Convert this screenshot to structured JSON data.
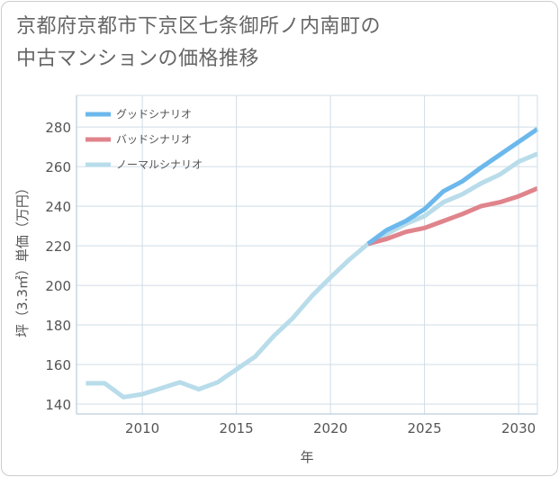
{
  "title_lines": [
    "京都府京都市下京区七条御所ノ内南町の",
    "中古マンションの価格推移"
  ],
  "chart_data": {
    "type": "line",
    "xlabel": "年",
    "ylabel": "坪（3.3㎡）単価（万円）",
    "xlim": [
      2006.5,
      2031
    ],
    "ylim": [
      135,
      296
    ],
    "xticks": [
      2010,
      2015,
      2020,
      2025,
      2030
    ],
    "yticks": [
      140,
      160,
      180,
      200,
      220,
      240,
      260,
      280
    ],
    "grid": true,
    "legend_position": "top-left",
    "series": [
      {
        "name": "グッドシナリオ",
        "color": "#6cb8ec",
        "x": [
          2022,
          2023,
          2024,
          2025,
          2026,
          2027,
          2028,
          2029,
          2030,
          2031
        ],
        "y": [
          221,
          228,
          232.5,
          238.5,
          247.5,
          252.5,
          259.5,
          266,
          272.5,
          279
        ]
      },
      {
        "name": "バッドシナリオ",
        "color": "#e0848c",
        "x": [
          2022,
          2023,
          2024,
          2025,
          2026,
          2027,
          2028,
          2029,
          2030,
          2031
        ],
        "y": [
          221,
          223.5,
          227,
          229,
          232.5,
          236,
          240,
          242,
          245,
          249
        ]
      },
      {
        "name": "ノーマルシナリオ",
        "color": "#b8dcea",
        "x": [
          2007,
          2008,
          2009,
          2010,
          2011,
          2012,
          2013,
          2014,
          2015,
          2016,
          2017,
          2018,
          2019,
          2020,
          2021,
          2022,
          2023,
          2024,
          2025,
          2026,
          2027,
          2028,
          2029,
          2030,
          2031
        ],
        "y": [
          150.5,
          150.5,
          143.5,
          145,
          148,
          151,
          147.5,
          151,
          157.5,
          164,
          174.5,
          183.5,
          194.5,
          204,
          213,
          221,
          226,
          231,
          235,
          242,
          246,
          251.5,
          256,
          262.5,
          266.5
        ]
      }
    ]
  }
}
